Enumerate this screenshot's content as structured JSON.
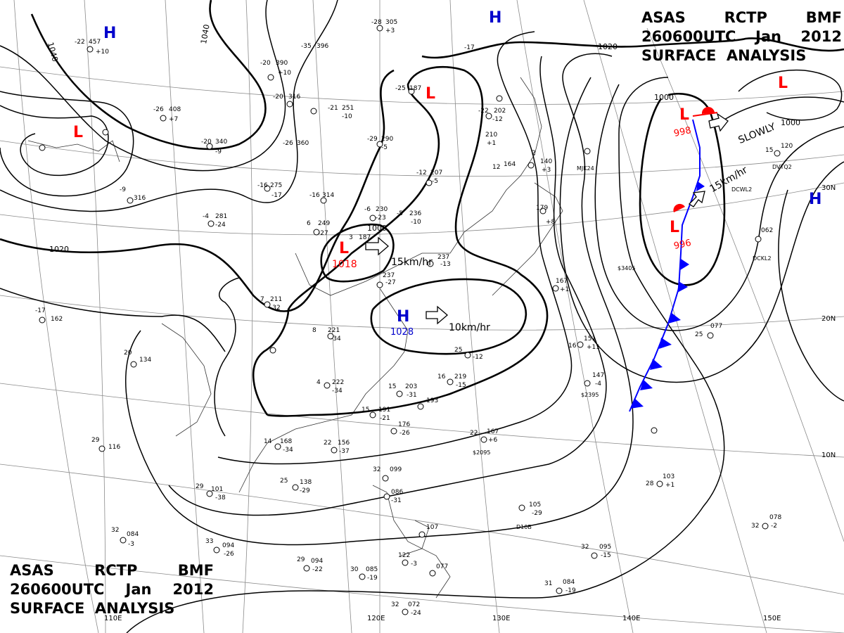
{
  "title_top": {
    "line1": [
      "ASAS",
      "RCTP",
      "BMF"
    ],
    "line2": [
      "260600UTC",
      "Jan",
      "2012"
    ],
    "line3": "SURFACE  ANALYSIS"
  },
  "title_bottom": {
    "line1": [
      "ASAS",
      "RCTP",
      "BMF"
    ],
    "line2": [
      "260600UTC",
      "Jan",
      "2012"
    ],
    "line3": "SURFACE  ANALYSIS"
  },
  "longitude_labels": [
    "110E",
    "120E",
    "130E",
    "140E",
    "150E"
  ],
  "latitude_labels": [
    "30N",
    "20N",
    "10N"
  ],
  "colors": {
    "high": "#0000cc",
    "low": "#ff0000",
    "isobar": "#000000",
    "grid": "#8a8a8a",
    "cold_front": "#0000ff",
    "warm_front": "#ff0000"
  },
  "isobar_labels": [
    "1040",
    "1040",
    "1020",
    "1020",
    "1000",
    "1000",
    "1000"
  ],
  "pressure_systems": [
    {
      "type": "H",
      "value": ""
    },
    {
      "type": "H",
      "value": ""
    },
    {
      "type": "H",
      "value": ""
    },
    {
      "type": "H",
      "value": "1028"
    },
    {
      "type": "L",
      "value": ""
    },
    {
      "type": "L",
      "value": ""
    },
    {
      "type": "L",
      "value": "1018"
    },
    {
      "type": "L",
      "value": ""
    },
    {
      "type": "L",
      "value": "998"
    },
    {
      "type": "L",
      "value": "996"
    }
  ],
  "motion_labels": [
    "15km/hr",
    "10km/hr",
    "SLOWLY",
    "15km/hr"
  ],
  "station_plots": [
    {
      "t": "-28",
      "p": "305",
      "c": "+3"
    },
    {
      "t": "-22",
      "p": "457",
      "c": "+10"
    },
    {
      "t": "-35",
      "p": "396",
      "c": ""
    },
    {
      "t": "-20",
      "p": "390",
      "c": "+10"
    },
    {
      "t": "-20",
      "p": "316",
      "c": ""
    },
    {
      "t": "-26",
      "p": "408",
      "c": "+7"
    },
    {
      "t": "-20",
      "p": "340",
      "c": "-9"
    },
    {
      "t": "-26",
      "p": "360",
      "c": ""
    },
    {
      "t": "-21",
      "p": "251",
      "c": "-10"
    },
    {
      "t": "-25",
      "p": "187",
      "c": ""
    },
    {
      "t": "-29",
      "p": "290",
      "c": "-5"
    },
    {
      "t": "-22",
      "p": "202",
      "c": "-12"
    },
    {
      "t": "-9",
      "p": "316",
      "c": ""
    },
    {
      "t": "-4",
      "p": "281",
      "c": "-24"
    },
    {
      "t": "-16",
      "p": "275",
      "c": "-17"
    },
    {
      "t": "-16",
      "p": "314",
      "c": ""
    },
    {
      "t": "-12",
      "p": "207",
      "c": "-5"
    },
    {
      "t": "6",
      "p": "249",
      "c": "-27"
    },
    {
      "t": "3",
      "p": "187",
      "c": ""
    },
    {
      "t": "-6",
      "p": "230",
      "c": "-23"
    },
    {
      "t": "-5",
      "p": "236",
      "c": "-10"
    },
    {
      "t": "7",
      "p": "211",
      "c": "-32"
    },
    {
      "t": "8",
      "p": "221",
      "c": "-34"
    },
    {
      "t": "237",
      "p": "",
      "c": "-27"
    },
    {
      "t": "237",
      "p": "",
      "c": "-13"
    },
    {
      "t": "-17",
      "p": "162",
      "c": ""
    },
    {
      "t": "20",
      "p": "134",
      "c": ""
    },
    {
      "t": "4",
      "p": "222",
      "c": "-34"
    },
    {
      "t": "15",
      "p": "203",
      "c": "-31"
    },
    {
      "t": "193",
      "p": "",
      "c": ""
    },
    {
      "t": "15",
      "p": "191",
      "c": "-21"
    },
    {
      "t": "16",
      "p": "219",
      "c": "-15"
    },
    {
      "t": "25",
      "p": "",
      "c": "-12"
    },
    {
      "t": "14",
      "p": "168",
      "c": "-34"
    },
    {
      "t": "22",
      "p": "156",
      "c": "-37"
    },
    {
      "t": "176",
      "p": "",
      "c": "-26"
    },
    {
      "t": "22",
      "p": "167",
      "c": "+6"
    },
    {
      "t": "29",
      "p": "116",
      "c": ""
    },
    {
      "t": "29",
      "p": "101",
      "c": "-38"
    },
    {
      "t": "25",
      "p": "138",
      "c": "-29"
    },
    {
      "t": "32",
      "p": "099",
      "c": ""
    },
    {
      "t": "086",
      "p": "",
      "c": "-31"
    },
    {
      "t": "105",
      "p": "",
      "c": "-29"
    },
    {
      "t": "28",
      "p": "103",
      "c": "+1"
    },
    {
      "t": "32",
      "p": "078",
      "c": "-2"
    },
    {
      "t": "33",
      "p": "094",
      "c": "-26"
    },
    {
      "t": "32",
      "p": "084",
      "c": "-3"
    },
    {
      "t": "107",
      "p": "",
      "c": ""
    },
    {
      "t": "32",
      "p": "095",
      "c": "-15"
    },
    {
      "t": "29",
      "p": "094",
      "c": "-22"
    },
    {
      "t": "30",
      "p": "085",
      "c": "-19"
    },
    {
      "t": "122",
      "p": "",
      "c": "-3"
    },
    {
      "t": "077",
      "p": "",
      "c": ""
    },
    {
      "t": "31",
      "p": "084",
      "c": "-19"
    },
    {
      "t": "32",
      "p": "072",
      "c": "-24"
    },
    {
      "t": "16",
      "p": "151",
      "c": "+11"
    },
    {
      "t": "147",
      "p": "",
      "c": "-4"
    },
    {
      "t": "167",
      "p": "",
      "c": "+1"
    },
    {
      "t": "25",
      "p": "077",
      "c": ""
    },
    {
      "t": "15",
      "p": "120",
      "c": ""
    },
    {
      "t": "062",
      "p": "",
      "c": ""
    },
    {
      "t": "179",
      "p": "",
      "c": "+8"
    },
    {
      "t": "2",
      "p": "140",
      "c": "+3"
    },
    {
      "t": "210",
      "p": "",
      "c": "+1"
    },
    {
      "t": "-17",
      "p": "",
      "c": ""
    },
    {
      "t": "12",
      "p": "164",
      "c": ""
    }
  ],
  "station_codes": [
    "MJK24",
    "DVTQ2",
    "DCWL2",
    "DCKL2",
    "$3405",
    "$2395",
    "$2095",
    "D10B"
  ]
}
